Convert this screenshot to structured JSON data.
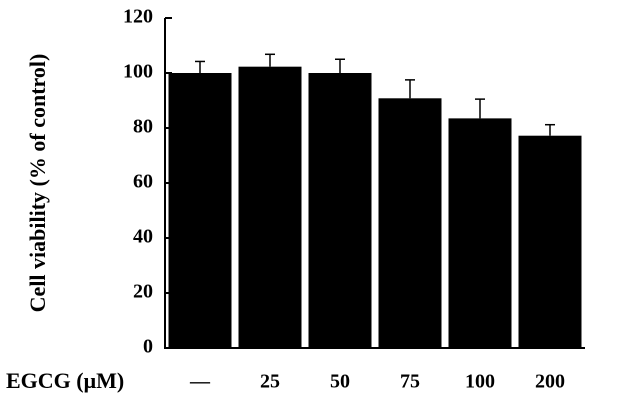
{
  "chart_data": {
    "type": "bar",
    "ylabel": "Cell viability (% of control)",
    "xlabel": "EGCG (μM)",
    "categories": [
      "—",
      "25",
      "50",
      "75",
      "100",
      "200"
    ],
    "values": [
      100,
      102.3,
      100,
      90.8,
      83.5,
      77.2
    ],
    "errors": [
      4.2,
      4.5,
      5,
      6.7,
      7,
      4
    ],
    "color": "#000000",
    "ylim": [
      0,
      120
    ],
    "yticks": [
      0,
      20,
      40,
      60,
      80,
      100,
      120
    ]
  }
}
